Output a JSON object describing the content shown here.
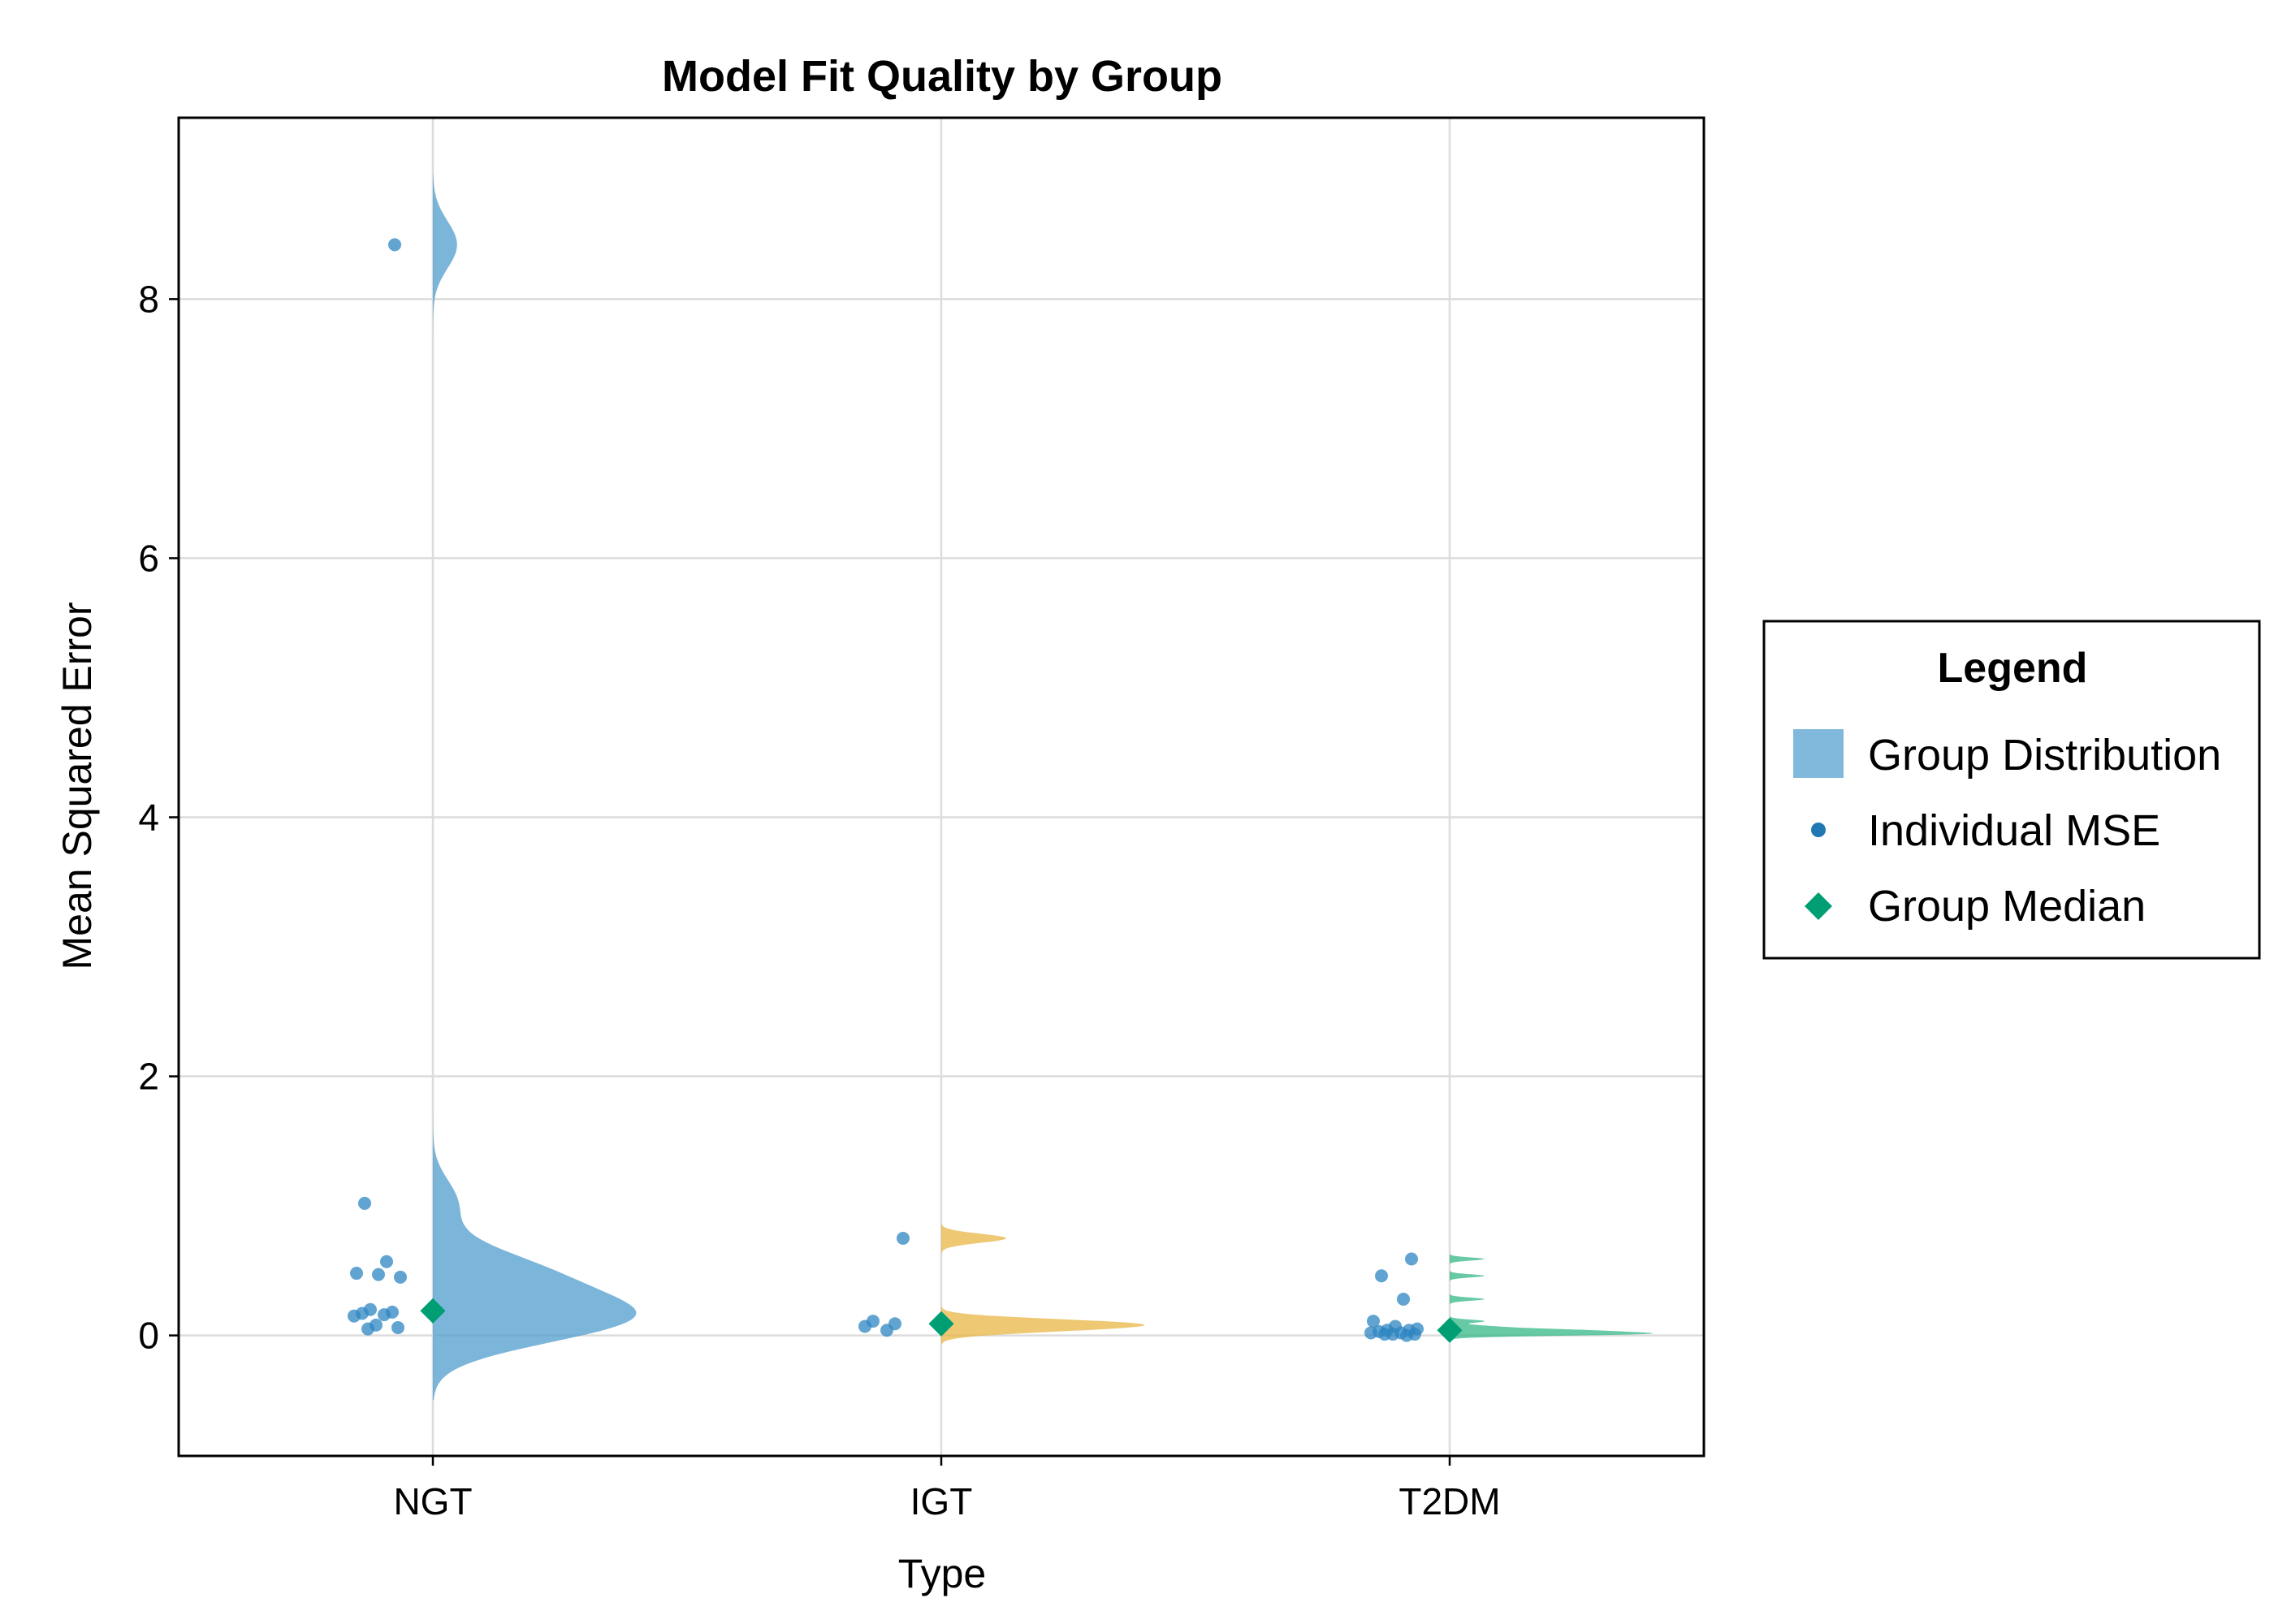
{
  "chart_data": {
    "type": "violin",
    "title": "Model Fit Quality by Group",
    "xlabel": "Type",
    "ylabel": "Mean Squared Error",
    "categories": [
      "NGT",
      "IGT",
      "T2DM"
    ],
    "ylim": [
      -0.93,
      9.4
    ],
    "y_ticks": [
      0,
      2,
      4,
      6,
      8
    ],
    "grid": true,
    "legend": {
      "title": "Legend",
      "position": "right",
      "entries": [
        "Group Distribution",
        "Individual MSE",
        "Group Median"
      ]
    },
    "colors": {
      "NGT": "#56a1cf",
      "IGT": "#e9b84a",
      "T2DM": "#3dbb8c",
      "points": "#2e86c1",
      "median": "#009e73"
    },
    "individual_mse": {
      "NGT": [
        8.42,
        1.02,
        0.57,
        0.48,
        0.47,
        0.45,
        0.2,
        0.18,
        0.17,
        0.16,
        0.15,
        0.08,
        0.06,
        0.05
      ],
      "IGT": [
        0.75,
        0.11,
        0.09,
        0.07,
        0.04
      ],
      "T2DM": [
        0.59,
        0.46,
        0.28,
        0.11,
        0.07,
        0.05,
        0.04,
        0.04,
        0.03,
        0.02,
        0.02,
        0.01,
        0.01,
        0.01,
        0.0
      ]
    },
    "group_median": {
      "NGT": 0.19,
      "IGT": 0.09,
      "T2DM": 0.04
    }
  }
}
